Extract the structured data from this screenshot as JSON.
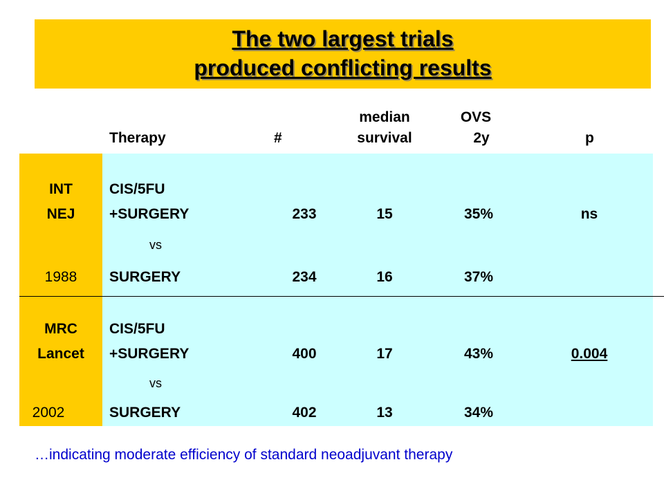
{
  "title": {
    "line1": "The two largest trials",
    "line2": "produced conflicting results"
  },
  "headers": {
    "therapy": "Therapy",
    "count": "#",
    "median_line1": "median",
    "median_line2": "survival",
    "ovs_line1": "OVS",
    "ovs_line2": "2y",
    "p": "p"
  },
  "trials": [
    {
      "label_line1": "INT",
      "label_line2": "NEJ",
      "year": "1988",
      "arm1_line1": "CIS/5FU",
      "arm1_line2": "+SURGERY",
      "arm1_n": "233",
      "arm1_median": "15",
      "arm1_ovs": "35%",
      "vs": "vs",
      "arm2": "SURGERY",
      "arm2_n": "234",
      "arm2_median": "16",
      "arm2_ovs": "37%",
      "p": "ns"
    },
    {
      "label_line1": "MRC",
      "label_line2": "Lancet",
      "year": "2002",
      "arm1_line1": "CIS/5FU",
      "arm1_line2": "+SURGERY",
      "arm1_n": "400",
      "arm1_median": "17",
      "arm1_ovs": "43%",
      "vs": "vs",
      "arm2": "SURGERY",
      "arm2_n": "402",
      "arm2_median": "13",
      "arm2_ovs": "34%",
      "p": "0.004"
    }
  ],
  "footnote": "…indicating moderate efficiency of standard neoadjuvant therapy",
  "colors": {
    "title_bg": "#FFCC00",
    "label_band": "#FFCC00",
    "table_bg": "#CCFFFF",
    "footnote": "#0000CC"
  }
}
